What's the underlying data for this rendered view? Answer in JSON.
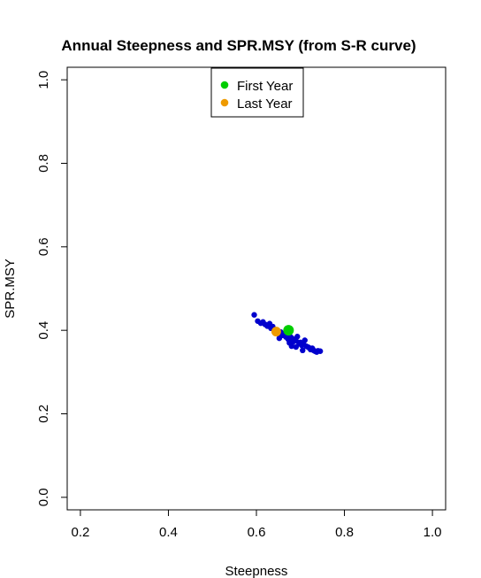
{
  "chart_data": {
    "type": "scatter",
    "title": "Annual Steepness and SPR.MSY (from S-R curve)",
    "xlabel": "Steepness",
    "ylabel": "SPR.MSY",
    "xlim": [
      0.17,
      1.03
    ],
    "ylim": [
      -0.03,
      1.03
    ],
    "xticks": [
      0.2,
      0.4,
      0.6,
      0.8,
      1.0
    ],
    "xtick_labels": [
      "0.2",
      "0.4",
      "0.6",
      "0.8",
      "1.0"
    ],
    "yticks": [
      0.0,
      0.2,
      0.4,
      0.6,
      0.8,
      1.0
    ],
    "ytick_labels": [
      "0.0",
      "0.2",
      "0.4",
      "0.6",
      "0.8",
      "1.0"
    ],
    "grid": false,
    "legend_position": "top",
    "series": [
      {
        "color": "#0000cd",
        "x": [
          0.595,
          0.603,
          0.61,
          0.615,
          0.62,
          0.625,
          0.63,
          0.633,
          0.637,
          0.64,
          0.645,
          0.65,
          0.652,
          0.655,
          0.66,
          0.663,
          0.667,
          0.67,
          0.672,
          0.676,
          0.68,
          0.683,
          0.686,
          0.69,
          0.693,
          0.697,
          0.7,
          0.703,
          0.707,
          0.71,
          0.713,
          0.717,
          0.72,
          0.723,
          0.727,
          0.73,
          0.733,
          0.737,
          0.74,
          0.745,
          0.69,
          0.705,
          0.68,
          0.65,
          0.675
        ],
        "y": [
          0.437,
          0.422,
          0.417,
          0.42,
          0.414,
          0.41,
          0.416,
          0.405,
          0.409,
          0.402,
          0.398,
          0.393,
          0.381,
          0.396,
          0.388,
          0.392,
          0.384,
          0.39,
          0.379,
          0.386,
          0.382,
          0.372,
          0.378,
          0.375,
          0.385,
          0.368,
          0.371,
          0.364,
          0.366,
          0.376,
          0.362,
          0.36,
          0.358,
          0.354,
          0.357,
          0.352,
          0.35,
          0.348,
          0.351,
          0.35,
          0.36,
          0.352,
          0.362,
          0.395,
          0.37
        ],
        "marker_size": 3.2
      },
      {
        "name": "First Year",
        "color": "#00cd00",
        "x": [
          0.673
        ],
        "y": [
          0.4
        ],
        "marker_size": 6
      },
      {
        "name": "Last Year",
        "color": "#ee9a00",
        "x": [
          0.645
        ],
        "y": [
          0.397
        ],
        "marker_size": 5.5
      }
    ],
    "legend": [
      {
        "label": "First Year",
        "color": "#00cd00"
      },
      {
        "label": "Last Year",
        "color": "#ee9a00"
      }
    ]
  }
}
